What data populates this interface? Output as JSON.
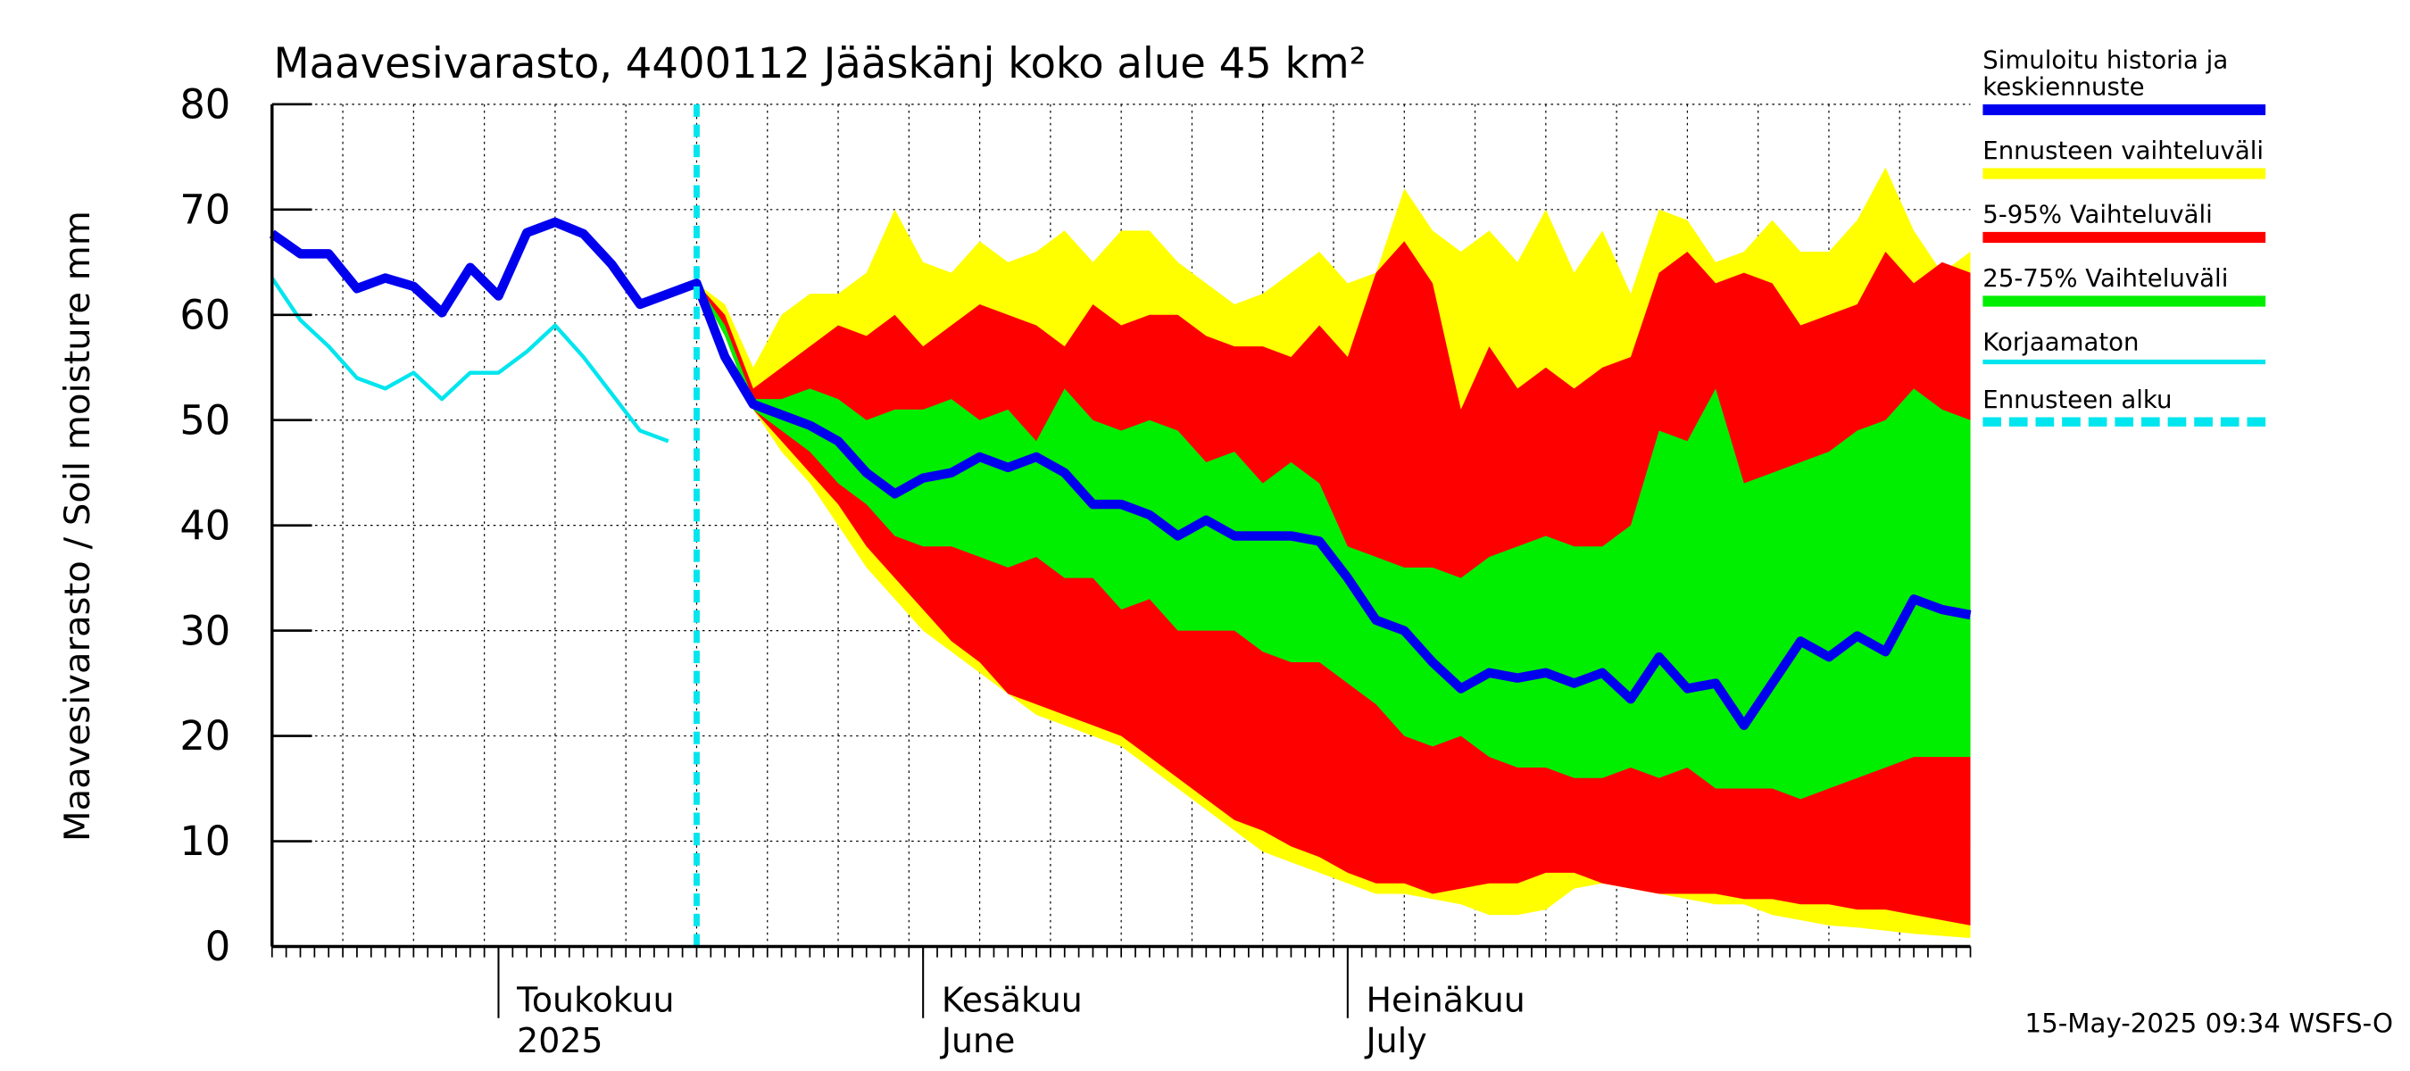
{
  "chart_data": {
    "type": "band-line",
    "title": "Maavesivarasto, 4400112 Jääskänj koko alue 45 km²",
    "y_label": "Maavesivarasto / Soil moisture   mm",
    "footer": "15-May-2025 09:34 WSFS-O",
    "ylim": [
      0,
      80
    ],
    "yticks": [
      0,
      10,
      20,
      30,
      40,
      50,
      60,
      70,
      80
    ],
    "grid": true,
    "categories": [
      null,
      null,
      null,
      null,
      null,
      null,
      null,
      null,
      "Toukokuu",
      null,
      null,
      null,
      null,
      null,
      null,
      null,
      null,
      null,
      null,
      null,
      null,
      null,
      null,
      "Kesäkuu",
      null,
      null,
      null,
      null,
      null,
      null,
      null,
      null,
      null,
      null,
      null,
      null,
      null,
      null,
      "Heinäkuu",
      null,
      null,
      null,
      null,
      null,
      null,
      null,
      null,
      null,
      null,
      null,
      null,
      null,
      null,
      null,
      null,
      null,
      null,
      null,
      null,
      null,
      null
    ],
    "categories_line2": [
      null,
      null,
      null,
      null,
      null,
      null,
      null,
      null,
      "2025",
      null,
      null,
      null,
      null,
      null,
      null,
      null,
      null,
      null,
      null,
      null,
      null,
      null,
      null,
      "June",
      null,
      null,
      null,
      null,
      null,
      null,
      null,
      null,
      null,
      null,
      null,
      null,
      null,
      null,
      "July",
      null,
      null,
      null,
      null,
      null,
      null,
      null,
      null,
      null,
      null,
      null,
      null,
      null,
      null,
      null,
      null,
      null,
      null,
      null,
      null,
      null,
      null
    ],
    "series": [
      {
        "name": "Simuloitu historia ja keskiennuste",
        "color": "#0000ee",
        "values": [
          67.7,
          65.8,
          65.8,
          62.5,
          63.5,
          62.7,
          60.2,
          64.5,
          61.8,
          67.8,
          68.8,
          67.7,
          64.8,
          61,
          62,
          63,
          56,
          51.5,
          50.5,
          49.5,
          48,
          45,
          43,
          44.5,
          45,
          46.5,
          45.5,
          46.5,
          45,
          42,
          42,
          41,
          39,
          40.5,
          39,
          39,
          39,
          38.5,
          35,
          31,
          30,
          27,
          24.5,
          26,
          25.5,
          26,
          25,
          26,
          23.5,
          27.5,
          24.5,
          25,
          21,
          25,
          29,
          27.5,
          29.5,
          28,
          33,
          32,
          31.5
        ]
      },
      {
        "name": "Ennusteen vaihteluväli",
        "color": "#ffff00",
        "values": [
          null,
          null,
          null,
          null,
          null,
          null,
          null,
          null,
          null,
          null,
          null,
          null,
          null,
          null,
          null,
          63,
          61,
          55,
          60,
          62,
          62,
          64,
          70,
          65,
          64,
          67,
          65,
          66,
          68,
          65,
          68,
          68,
          65,
          63,
          61,
          62,
          64,
          66,
          63,
          64,
          72,
          68,
          66,
          68,
          65,
          70,
          64,
          68,
          62,
          70,
          69,
          65,
          66,
          69,
          66,
          66,
          69,
          74,
          68,
          64,
          66
        ],
        "lower": [
          null,
          null,
          null,
          null,
          null,
          null,
          null,
          null,
          null,
          null,
          null,
          null,
          null,
          null,
          null,
          63,
          58,
          51,
          47,
          44,
          40,
          36,
          33,
          30,
          28,
          26,
          24,
          22,
          21,
          20,
          19,
          17,
          15,
          13,
          11,
          9,
          8,
          7,
          6,
          5,
          5,
          4.5,
          4,
          3,
          3,
          3.5,
          5.5,
          6,
          5.5,
          5,
          4.5,
          4,
          4,
          3,
          2.5,
          2,
          1.8,
          1.5,
          1.2,
          1,
          0.8
        ]
      },
      {
        "name": "5-95% Vaihteluväli",
        "color": "#ff0000",
        "values": [
          null,
          null,
          null,
          null,
          null,
          null,
          null,
          null,
          null,
          null,
          null,
          null,
          null,
          null,
          null,
          63,
          60,
          53,
          55,
          57,
          59,
          58,
          60,
          57,
          59,
          61,
          60,
          59,
          57,
          61,
          59,
          60,
          60,
          58,
          57,
          57,
          56,
          59,
          56,
          64,
          67,
          63,
          51,
          57,
          53,
          55,
          53,
          55,
          56,
          64,
          66,
          63,
          64,
          63,
          59,
          60,
          61,
          66,
          63,
          65,
          64
        ],
        "lower": [
          null,
          null,
          null,
          null,
          null,
          null,
          null,
          null,
          null,
          null,
          null,
          null,
          null,
          null,
          null,
          63,
          58,
          51,
          48,
          45,
          42,
          38,
          35,
          32,
          29,
          27,
          24,
          23,
          22,
          21,
          20,
          18,
          16,
          14,
          12,
          11,
          9.5,
          8.5,
          7,
          6,
          6,
          5,
          5.5,
          6,
          6,
          7,
          7,
          6,
          5.5,
          5,
          5,
          5,
          4.5,
          4.5,
          4,
          4,
          3.5,
          3.5,
          3,
          2.5,
          2
        ]
      },
      {
        "name": "25-75% Vaihteluväli",
        "color": "#00ee00",
        "values": [
          null,
          null,
          null,
          null,
          null,
          null,
          null,
          null,
          null,
          null,
          null,
          null,
          null,
          null,
          null,
          63,
          59,
          52,
          52,
          53,
          52,
          50,
          51,
          51,
          52,
          50,
          51,
          48,
          53,
          50,
          49,
          50,
          49,
          46,
          47,
          44,
          46,
          44,
          38,
          37,
          36,
          36,
          35,
          37,
          38,
          39,
          38,
          38,
          40,
          49,
          48,
          53,
          44,
          45,
          46,
          47,
          49,
          50,
          53,
          51,
          50
        ],
        "lower": [
          null,
          null,
          null,
          null,
          null,
          null,
          null,
          null,
          null,
          null,
          null,
          null,
          null,
          null,
          null,
          63,
          58,
          51,
          49,
          47,
          44,
          42,
          39,
          38,
          38,
          37,
          36,
          37,
          35,
          35,
          32,
          33,
          30,
          30,
          30,
          28,
          27,
          27,
          25,
          23,
          20,
          19,
          20,
          18,
          17,
          17,
          16,
          16,
          17,
          16,
          17,
          15,
          15,
          15,
          14,
          15,
          16,
          17,
          18,
          18,
          18
        ]
      },
      {
        "name": "Korjaamaton",
        "color": "#00e5ee",
        "values": [
          63.5,
          59.5,
          57,
          54,
          53,
          54.5,
          52,
          54.5,
          54.5,
          56.5,
          59,
          56,
          52.5,
          49,
          48,
          null,
          null,
          null,
          null,
          null,
          null,
          null,
          null,
          null,
          null,
          null,
          null,
          null,
          null,
          null,
          null,
          null,
          null,
          null,
          null,
          null,
          null,
          null,
          null,
          null,
          null,
          null,
          null,
          null,
          null,
          null,
          null,
          null,
          null,
          null,
          null,
          null,
          null,
          null,
          null,
          null,
          null,
          null,
          null,
          null,
          null
        ]
      },
      {
        "name": "Ennusteen alku",
        "color": "#00e5ee",
        "dashed": true
      }
    ]
  }
}
